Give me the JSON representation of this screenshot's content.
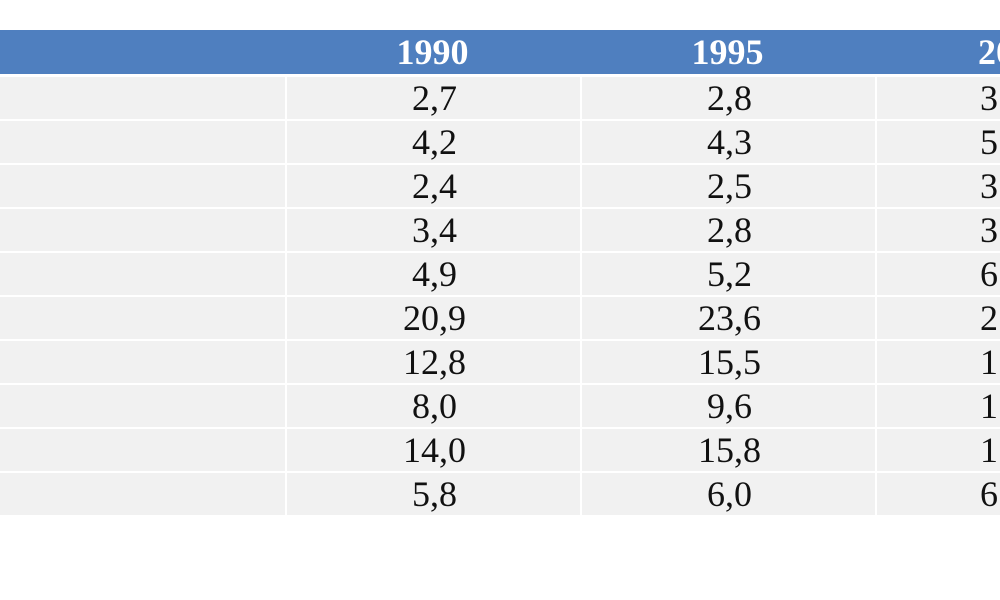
{
  "table": {
    "columns": [
      "1990",
      "1995",
      "20"
    ],
    "rows": [
      [
        "2,7",
        "2,8",
        "3"
      ],
      [
        "4,2",
        "4,3",
        "5"
      ],
      [
        "2,4",
        "2,5",
        "3"
      ],
      [
        "3,4",
        "2,8",
        "3"
      ],
      [
        "4,9",
        "5,2",
        "6"
      ],
      [
        "20,9",
        "23,6",
        "2"
      ],
      [
        "12,8",
        "15,5",
        "1"
      ],
      [
        "8,0",
        "9,6",
        "1"
      ],
      [
        "14,0",
        "15,8",
        "1"
      ],
      [
        "5,8",
        "6,0",
        "6"
      ]
    ]
  }
}
